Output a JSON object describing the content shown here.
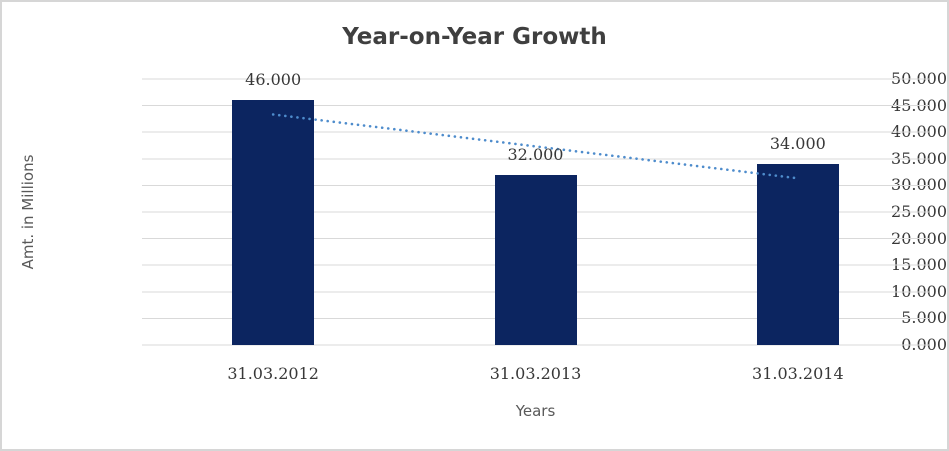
{
  "chart_data": {
    "type": "bar",
    "title": "Year-on-Year Growth",
    "categories": [
      "31.03.2012",
      "31.03.2013",
      "31.03.2014"
    ],
    "values": [
      46,
      32,
      34
    ],
    "value_labels": [
      "46.000",
      "32.000",
      "34.000"
    ],
    "xlabel": "Years",
    "ylabel": "Amt. in Millions",
    "ylim": [
      0,
      50
    ],
    "ytick_step": 5,
    "ytick_labels": [
      "0.000",
      "5.000",
      "10.000",
      "15.000",
      "20.000",
      "25.000",
      "30.000",
      "35.000",
      "40.000",
      "45.000",
      "50.000"
    ],
    "grid": "horizontal",
    "legend": "none",
    "bar_color": "#0c2560",
    "trendline": {
      "type": "linear",
      "style": "dotted",
      "color": "#4e8ccc",
      "start_value": 43.333,
      "end_value": 31.333
    }
  },
  "colors": {
    "gridline": "#d9d9d9",
    "frame_border": "#d6d6d6",
    "title_text": "#3f3f3f",
    "tick_text": "#383838",
    "axis_title_text": "#595959",
    "background": "#ffffff"
  }
}
